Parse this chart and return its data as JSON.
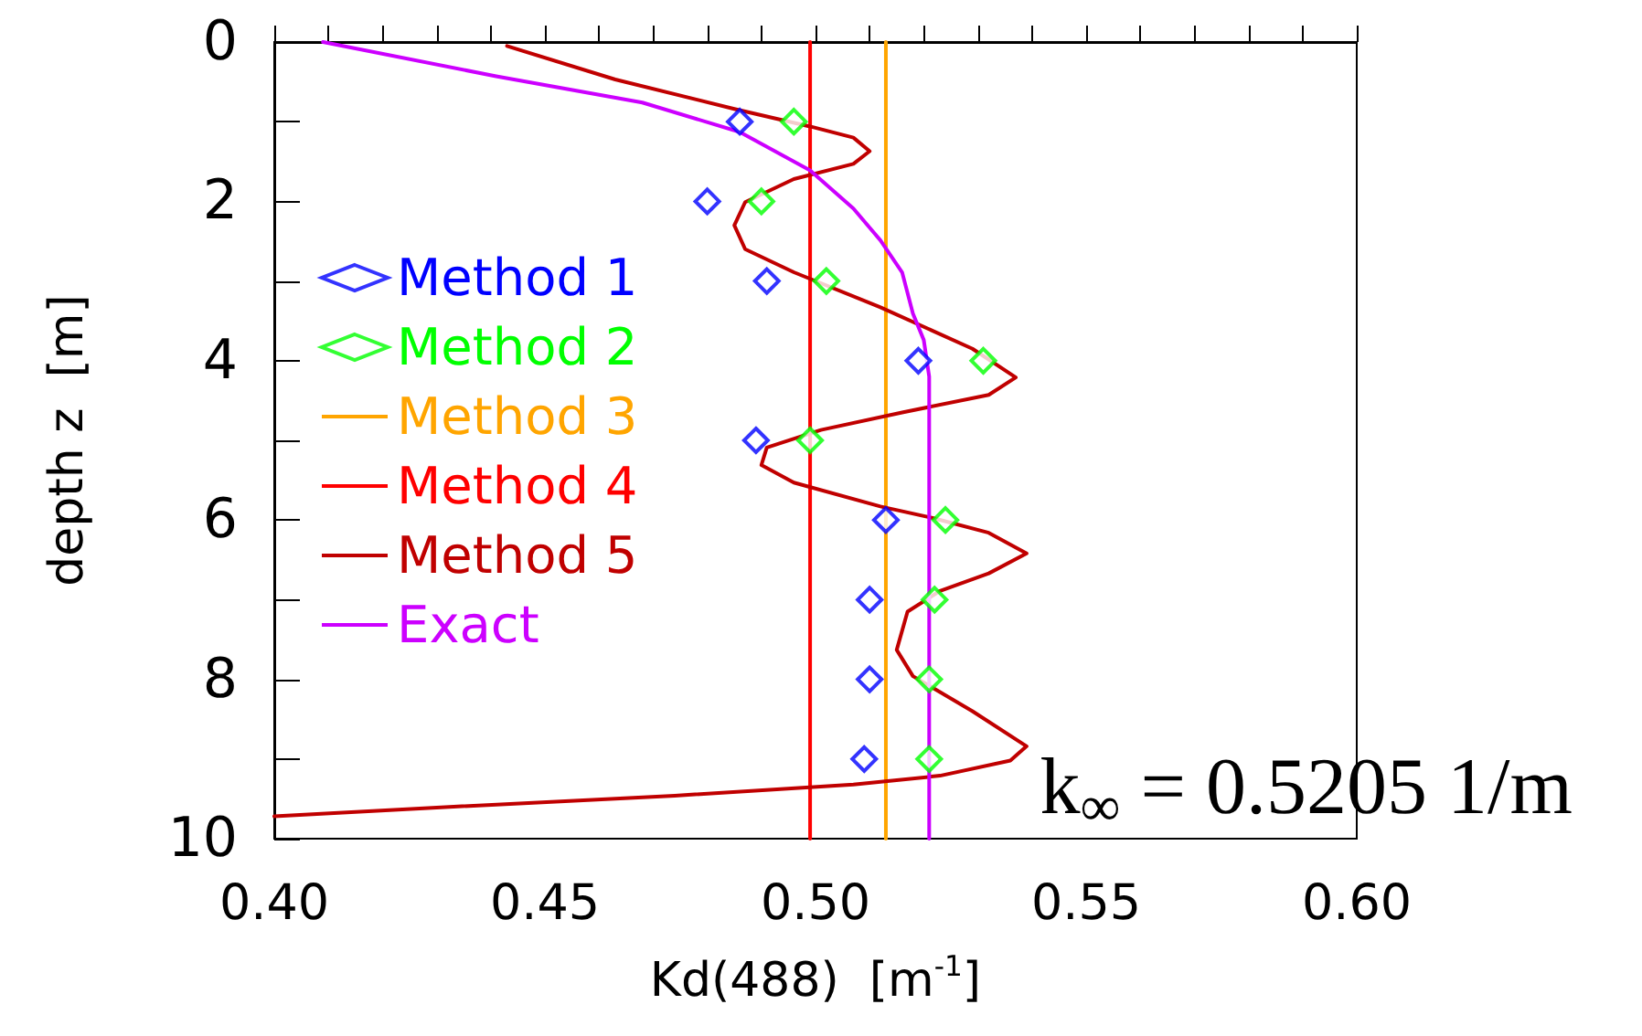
{
  "chart_data": {
    "type": "line",
    "xlabel": "Kd(488)  [m$^{-1}$]",
    "ylabel": "depth z  [m]",
    "annotations": [
      "k$_{∞}$ = 0.5205 1/m"
    ],
    "xlim": [
      0.4,
      0.6
    ],
    "ylim": [
      10,
      0
    ],
    "xticks": [
      {
        "value": 0.4,
        "label": "0.40"
      },
      {
        "value": 0.41,
        "label": null
      },
      {
        "value": 0.42,
        "label": null
      },
      {
        "value": 0.43,
        "label": null
      },
      {
        "value": 0.44,
        "label": null
      },
      {
        "value": 0.45,
        "label": "0.45"
      },
      {
        "value": 0.46,
        "label": null
      },
      {
        "value": 0.47,
        "label": null
      },
      {
        "value": 0.48,
        "label": null
      },
      {
        "value": 0.49,
        "label": null
      },
      {
        "value": 0.5,
        "label": "0.50"
      },
      {
        "value": 0.51,
        "label": null
      },
      {
        "value": 0.52,
        "label": null
      },
      {
        "value": 0.53,
        "label": null
      },
      {
        "value": 0.54,
        "label": null
      },
      0.55,
      {
        "value": 0.56,
        "label": null
      },
      {
        "value": 0.57,
        "label": null
      },
      {
        "value": 0.58,
        "label": null
      },
      {
        "value": 0.59,
        "label": null
      },
      {
        "value": 0.6,
        "label": "0.60"
      }
    ],
    "yticks": [
      0,
      {
        "value": 1,
        "label": null
      },
      2,
      {
        "value": 3,
        "label": null
      },
      4,
      {
        "value": 5,
        "label": null
      },
      6,
      {
        "value": 7,
        "label": null
      },
      8,
      {
        "value": 9,
        "label": null
      },
      10
    ],
    "legend": "left",
    "grid": false,
    "series": [
      {
        "name": "Method 1",
        "type": "scatter",
        "marker": "diamond",
        "color": "#0000ff",
        "x": [
          0.486,
          0.48,
          0.491,
          0.519,
          0.489,
          0.513,
          0.51,
          0.51,
          0.509
        ],
        "values": [
          1,
          2,
          3,
          4,
          5,
          6,
          7,
          8,
          9
        ]
      },
      {
        "name": "Method 2",
        "type": "scatter",
        "marker": "diamond",
        "color": "#00ff00",
        "x": [
          0.496,
          0.49,
          0.502,
          0.531,
          0.499,
          0.524,
          0.522,
          0.521,
          0.521
        ],
        "values": [
          1,
          2,
          3,
          4,
          5,
          6,
          7,
          8,
          9
        ]
      },
      {
        "name": "Method 3",
        "color": "#ffa500",
        "x": [
          0.513,
          0.513
        ],
        "values": [
          0,
          10
        ]
      },
      {
        "name": "Method 4",
        "color": "#ff0000",
        "x": [
          0.499,
          0.499
        ],
        "values": [
          0,
          10
        ]
      },
      {
        "name": "Method 5",
        "color": "#c00000",
        "x": [
          0.443,
          0.463,
          0.485,
          0.499,
          0.507,
          0.51,
          0.507,
          0.496,
          0.487,
          0.485,
          0.487,
          0.496,
          0.512,
          0.529,
          0.537,
          0.532,
          0.516,
          0.501,
          0.491,
          0.49,
          0.496,
          0.512,
          0.522,
          0.532,
          0.539,
          0.532,
          0.523,
          0.517,
          0.515,
          0.518,
          0.529,
          0.539,
          0.536,
          0.523,
          0.507,
          0.474,
          0.43,
          0.4
        ],
        "values": [
          0.05,
          0.47,
          0.84,
          1.06,
          1.2,
          1.37,
          1.53,
          1.72,
          2.01,
          2.3,
          2.6,
          2.89,
          3.33,
          3.85,
          4.21,
          4.43,
          4.65,
          4.87,
          5.09,
          5.31,
          5.53,
          5.83,
          5.98,
          6.16,
          6.42,
          6.67,
          6.89,
          7.15,
          7.63,
          7.96,
          8.4,
          8.84,
          9.02,
          9.21,
          9.32,
          9.46,
          9.61,
          9.72
        ]
      },
      {
        "name": "Exact",
        "color": "#cc00ff",
        "x": [
          0.409,
          0.441,
          0.468,
          0.486,
          0.499,
          0.507,
          0.512,
          0.516,
          0.518,
          0.52,
          0.521,
          0.521
        ],
        "values": [
          0,
          0.43,
          0.76,
          1.13,
          1.61,
          2.09,
          2.49,
          2.89,
          3.41,
          3.74,
          4.2,
          10
        ]
      }
    ]
  }
}
